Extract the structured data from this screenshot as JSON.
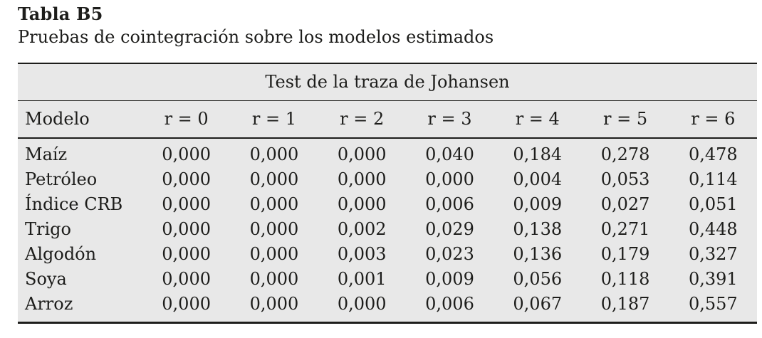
{
  "page": {
    "title": "Tabla B5",
    "subtitle": "Pruebas de cointegración sobre los modelos estimados"
  },
  "table": {
    "group_header": "Test de la traza de Johansen",
    "columns": [
      "Modelo",
      "r = 0",
      "r = 1",
      "r = 2",
      "r = 3",
      "r = 4",
      "r = 5",
      "r = 6"
    ],
    "rows": [
      {
        "modelo": "Maíz",
        "values": [
          "0,000",
          "0,000",
          "0,000",
          "0,040",
          "0,184",
          "0,278",
          "0,478"
        ]
      },
      {
        "modelo": "Petróleo",
        "values": [
          "0,000",
          "0,000",
          "0,000",
          "0,000",
          "0,004",
          "0,053",
          "0,114"
        ]
      },
      {
        "modelo": "Índice CRB",
        "values": [
          "0,000",
          "0,000",
          "0,000",
          "0,006",
          "0,009",
          "0,027",
          "0,051"
        ]
      },
      {
        "modelo": "Trigo",
        "values": [
          "0,000",
          "0,000",
          "0,002",
          "0,029",
          "0,138",
          "0,271",
          "0,448"
        ]
      },
      {
        "modelo": "Algodón",
        "values": [
          "0,000",
          "0,000",
          "0,003",
          "0,023",
          "0,136",
          "0,179",
          "0,327"
        ]
      },
      {
        "modelo": "Soya",
        "values": [
          "0,000",
          "0,000",
          "0,001",
          "0,009",
          "0,056",
          "0,118",
          "0,391"
        ]
      },
      {
        "modelo": "Arroz",
        "values": [
          "0,000",
          "0,000",
          "0,000",
          "0,006",
          "0,067",
          "0,187",
          "0,557"
        ]
      }
    ]
  },
  "colors": {
    "table_background": "#e8e8e8",
    "rule": "#1d1d1b",
    "text": "#1d1d1b",
    "page_background": "#ffffff"
  }
}
